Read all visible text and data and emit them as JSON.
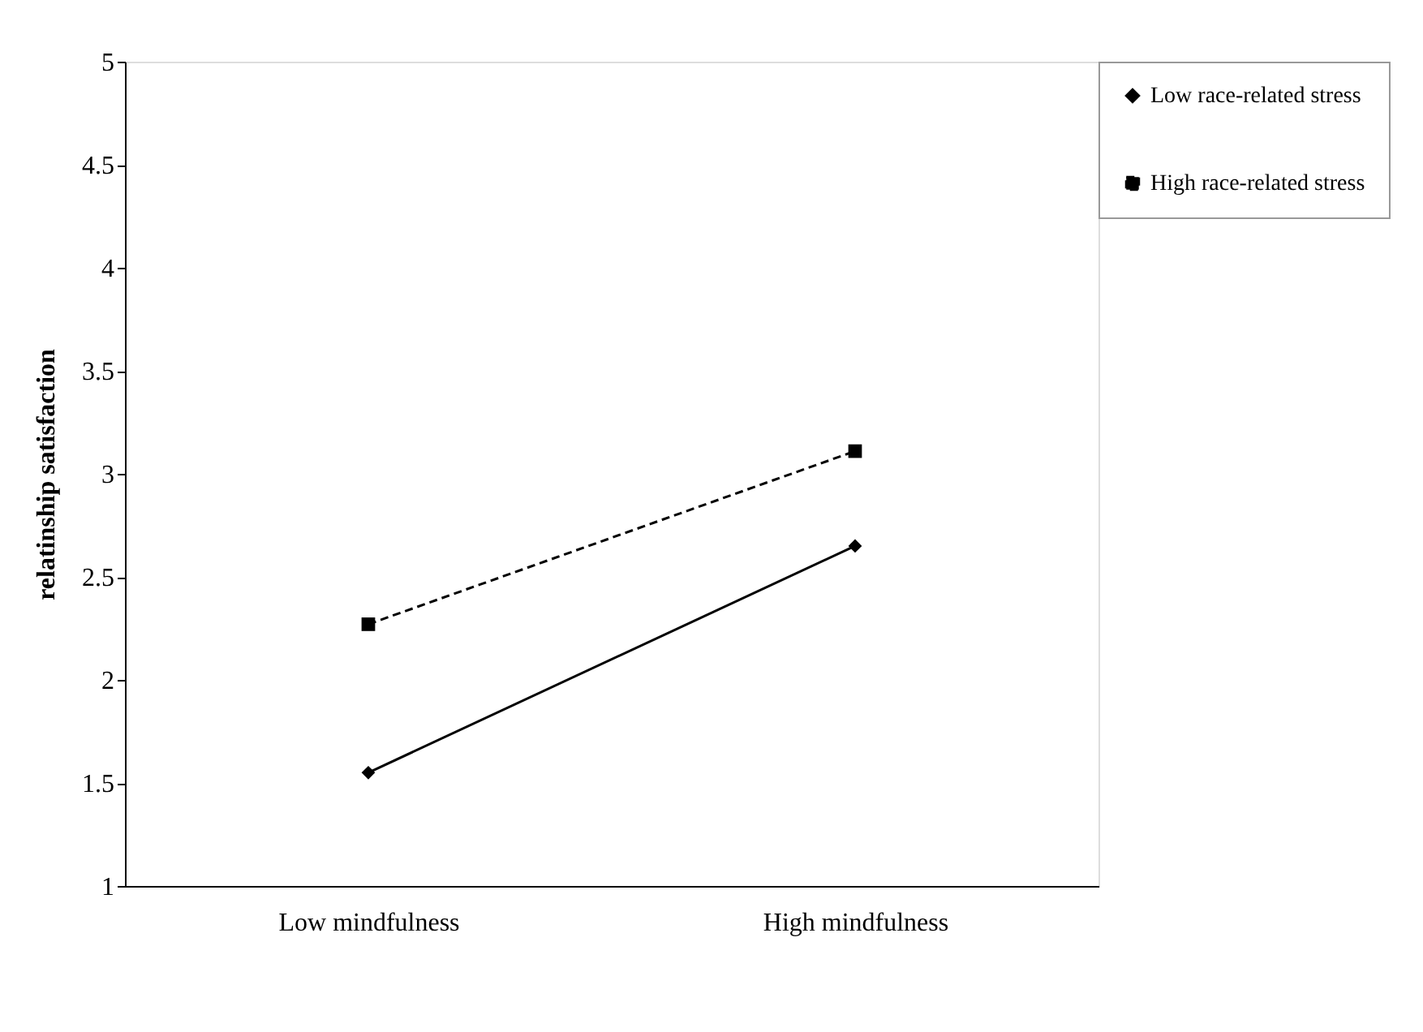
{
  "chart_data": {
    "type": "line",
    "ylabel": "relatinship satisfaction",
    "categories": [
      "Low mindfulness",
      "High mindfulness"
    ],
    "series": [
      {
        "name": "Low race-related stress",
        "color": "#000000",
        "values": [
          1.55,
          2.65
        ],
        "marker": "diamond",
        "line_style": "solid"
      },
      {
        "name": "High race-related stress",
        "color": "#000000",
        "values": [
          2.27,
          3.11
        ],
        "marker": "square",
        "line_style": "dashed"
      }
    ],
    "ylim": [
      1,
      5
    ],
    "yticks": [
      1,
      1.5,
      2,
      2.5,
      3,
      3.5,
      4,
      4.5,
      5
    ],
    "grid": false,
    "legend": "right"
  }
}
